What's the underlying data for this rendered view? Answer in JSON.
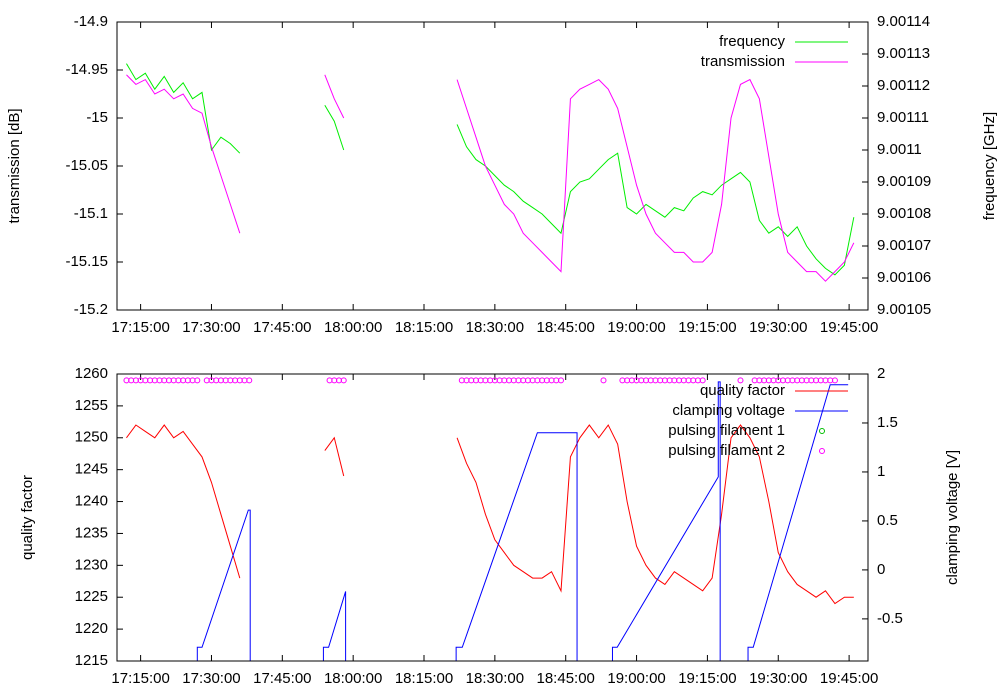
{
  "chart_data": [
    {
      "type": "line",
      "x": [
        1032,
        1034,
        1036,
        1038,
        1040,
        1042,
        1044,
        1046,
        1048,
        1050,
        1052,
        1054,
        1056,
        1058,
        1060,
        1062,
        1064,
        1066,
        1068,
        1070,
        1072,
        1074,
        1076,
        1078,
        1080,
        1082,
        1084,
        1086,
        1088,
        1090,
        1092,
        1094,
        1096,
        1098,
        1100,
        1102,
        1104,
        1106,
        1108,
        1110,
        1112,
        1114,
        1116,
        1118,
        1120,
        1122,
        1124,
        1126,
        1128,
        1130,
        1132,
        1134,
        1136,
        1138,
        1140,
        1142,
        1144,
        1146,
        1148,
        1150,
        1152,
        1154,
        1156,
        1158,
        1160,
        1162,
        1164,
        1166,
        1168,
        1170,
        1172,
        1174,
        1176,
        1178,
        1180,
        1182,
        1184,
        1186
      ],
      "xlim": [
        1030,
        1189
      ],
      "xticks": [
        {
          "value": 1035,
          "label": "17:15:00"
        },
        {
          "value": 1050,
          "label": "17:30:00"
        },
        {
          "value": 1065,
          "label": "17:45:00"
        },
        {
          "value": 1080,
          "label": "18:00:00"
        },
        {
          "value": 1095,
          "label": "18:15:00"
        },
        {
          "value": 1110,
          "label": "18:30:00"
        },
        {
          "value": 1125,
          "label": "18:45:00"
        },
        {
          "value": 1140,
          "label": "19:00:00"
        },
        {
          "value": 1155,
          "label": "19:15:00"
        },
        {
          "value": 1170,
          "label": "19:30:00"
        },
        {
          "value": 1185,
          "label": "19:45:00"
        }
      ],
      "ylim": [
        -15.2,
        -14.9
      ],
      "yticks": [
        -15.2,
        -15.15,
        -15.1,
        -15.05,
        -15,
        -14.95,
        -14.9
      ],
      "y2lim": [
        9.00105,
        9.00114
      ],
      "y2ticks": [
        9.00105,
        9.00106,
        9.00107,
        9.00108,
        9.00109,
        9.0011,
        9.00111,
        9.00112,
        9.00113,
        9.00114
      ],
      "ylabel": "transmission [dB]",
      "y2label": "frequency [GHz]",
      "legend": "upper right",
      "series": [
        {
          "name": "frequency",
          "color": "#00ee00",
          "axis": "y2",
          "values": [
            9.001127,
            9.001122,
            9.001124,
            9.001119,
            9.001123,
            9.001118,
            9.001121,
            9.001116,
            9.001118,
            9.0011,
            9.001104,
            9.001102,
            9.001099,
            null,
            null,
            null,
            null,
            null,
            null,
            null,
            null,
            9.001114,
            9.001109,
            9.0011,
            null,
            null,
            null,
            null,
            null,
            null,
            null,
            null,
            null,
            null,
            null,
            9.001108,
            9.001101,
            9.001097,
            9.001095,
            9.001092,
            9.001089,
            9.001087,
            9.001084,
            9.001082,
            9.00108,
            9.001077,
            9.001074,
            9.001087,
            9.00109,
            9.001091,
            9.001094,
            9.001097,
            9.001099,
            9.001082,
            9.00108,
            9.001083,
            9.001081,
            9.001079,
            9.001082,
            9.001081,
            9.001085,
            9.001087,
            9.001086,
            9.001089,
            9.001091,
            9.001093,
            9.00109,
            9.001078,
            9.001074,
            9.001076,
            9.001073,
            9.001076,
            9.00107,
            9.001066,
            9.001063,
            9.001061,
            9.001064,
            9.001079
          ]
        },
        {
          "name": "transmission",
          "color": "#ff00ff",
          "values": [
            -14.955,
            -14.965,
            -14.96,
            -14.975,
            -14.97,
            -14.98,
            -14.975,
            -14.99,
            -14.995,
            -15.03,
            -15.06,
            -15.09,
            -15.12,
            null,
            null,
            null,
            null,
            null,
            null,
            null,
            null,
            -14.955,
            -14.98,
            -15,
            null,
            null,
            null,
            null,
            null,
            null,
            null,
            null,
            null,
            null,
            null,
            -14.96,
            -14.99,
            -15.02,
            -15.05,
            -15.07,
            -15.09,
            -15.1,
            -15.12,
            -15.13,
            -15.14,
            -15.15,
            -15.16,
            -14.98,
            -14.97,
            -14.965,
            -14.96,
            -14.97,
            -14.99,
            -15.03,
            -15.07,
            -15.1,
            -15.12,
            -15.13,
            -15.14,
            -15.14,
            -15.15,
            -15.15,
            -15.14,
            -15.09,
            -15,
            -14.965,
            -14.96,
            -14.98,
            -15.04,
            -15.1,
            -15.14,
            -15.15,
            -15.16,
            -15.16,
            -15.17,
            -15.16,
            -15.15,
            -15.13
          ]
        }
      ]
    },
    {
      "type": "line",
      "xlim": [
        1030,
        1189
      ],
      "xticks": [
        {
          "value": 1035,
          "label": "17:15:00"
        },
        {
          "value": 1050,
          "label": "17:30:00"
        },
        {
          "value": 1065,
          "label": "17:45:00"
        },
        {
          "value": 1080,
          "label": "18:00:00"
        },
        {
          "value": 1095,
          "label": "18:15:00"
        },
        {
          "value": 1110,
          "label": "18:30:00"
        },
        {
          "value": 1125,
          "label": "18:45:00"
        },
        {
          "value": 1140,
          "label": "19:00:00"
        },
        {
          "value": 1155,
          "label": "19:15:00"
        },
        {
          "value": 1170,
          "label": "19:30:00"
        },
        {
          "value": 1185,
          "label": "19:45:00"
        }
      ],
      "ylim": [
        1215,
        1260
      ],
      "yticks": [
        1215,
        1220,
        1225,
        1230,
        1235,
        1240,
        1245,
        1250,
        1255,
        1260
      ],
      "y2lim": [
        -0.93,
        2
      ],
      "y2ticks": [
        -0.5,
        0,
        0.5,
        1,
        1.5,
        2
      ],
      "ylabel": "quality factor",
      "y2label": "clamping voltage [V]",
      "legend": "upper right",
      "series": [
        {
          "name": "quality factor",
          "color": "#ff0000",
          "x": [
            1032,
            1034,
            1036,
            1038,
            1040,
            1042,
            1044,
            1046,
            1048,
            1050,
            1052,
            1054,
            1056,
            1058,
            1060,
            1062,
            1064,
            1066,
            1068,
            1070,
            1072,
            1074,
            1076,
            1078,
            1080,
            1082,
            1084,
            1086,
            1088,
            1090,
            1092,
            1094,
            1096,
            1098,
            1100,
            1102,
            1104,
            1106,
            1108,
            1110,
            1112,
            1114,
            1116,
            1118,
            1120,
            1122,
            1124,
            1126,
            1128,
            1130,
            1132,
            1134,
            1136,
            1138,
            1140,
            1142,
            1144,
            1146,
            1148,
            1150,
            1152,
            1154,
            1156,
            1158,
            1160,
            1162,
            1164,
            1166,
            1168,
            1170,
            1172,
            1174,
            1176,
            1178,
            1180,
            1182,
            1184,
            1186
          ],
          "values": [
            1250,
            1252,
            1251,
            1250,
            1252,
            1250,
            1251,
            1249,
            1247,
            1243,
            1238,
            1233,
            1228,
            null,
            null,
            null,
            null,
            null,
            null,
            null,
            null,
            1248,
            1250,
            1244,
            null,
            null,
            null,
            null,
            null,
            null,
            null,
            null,
            null,
            null,
            null,
            1250,
            1246,
            1243,
            1238,
            1234,
            1232,
            1230,
            1229,
            1228,
            1228,
            1229,
            1226,
            1247,
            1250,
            1252,
            1250,
            1252,
            1249,
            1240,
            1233,
            1230,
            1228,
            1227,
            1229,
            1228,
            1227,
            1226,
            1228,
            1238,
            1250,
            1252,
            1250,
            1247,
            1240,
            1232,
            1229,
            1227,
            1226,
            1225,
            1226,
            1224,
            1225,
            1225
          ]
        },
        {
          "name": "clamping voltage",
          "color": "#0000ff",
          "axis": "y2",
          "x": [
            1047,
            1047,
            1048,
            1057.8,
            1058.2,
            1058.2,
            1066,
            1073.7,
            1073.7,
            1074.8,
            1078.4,
            1078.4,
            1090,
            1101.8,
            1101.8,
            1103.1,
            1119,
            1127.4,
            1127.4,
            1131,
            1134.9,
            1134.9,
            1135.9,
            1157.3,
            1157.3,
            1157.7,
            1157.7,
            1160,
            1163.6,
            1163.6,
            1164.7,
            1181,
            1184.8
          ],
          "values": [
            -1,
            -0.79,
            -0.79,
            0.61,
            0.61,
            -1,
            null,
            -1,
            -0.79,
            -0.79,
            -0.22,
            -1,
            null,
            -1,
            -0.79,
            -0.79,
            1.4,
            1.4,
            -1,
            null,
            -1,
            -0.79,
            -0.79,
            0.95,
            1.92,
            1.92,
            -1,
            null,
            -1,
            -0.79,
            -0.79,
            1.89,
            1.89
          ]
        },
        {
          "name": "pulsing filament 1",
          "color": "#00c000",
          "marker": "circle",
          "x": [],
          "values": []
        },
        {
          "name": "pulsing filament 2",
          "color": "#ff00ff",
          "marker": "circle",
          "x": [
            1032,
            1033,
            1034,
            1035,
            1036,
            1037,
            1038,
            1039,
            1040,
            1041,
            1042,
            1043,
            1044,
            1045,
            1046,
            1047,
            1049,
            1050,
            1051,
            1052,
            1053,
            1054,
            1055,
            1056,
            1057,
            1058,
            1075,
            1076,
            1077,
            1078,
            1103,
            1104,
            1105,
            1106,
            1107,
            1108,
            1109,
            1110,
            1111,
            1112,
            1113,
            1114,
            1115,
            1116,
            1117,
            1118,
            1119,
            1120,
            1121,
            1122,
            1123,
            1124,
            1133,
            1137,
            1138,
            1139,
            1140,
            1141,
            1142,
            1143,
            1144,
            1145,
            1146,
            1147,
            1148,
            1149,
            1150,
            1151,
            1152,
            1153,
            1154,
            1162,
            1165,
            1166,
            1167,
            1168,
            1169,
            1170,
            1171,
            1172,
            1173,
            1174,
            1175,
            1176,
            1177,
            1178,
            1179,
            1180,
            1181,
            1182
          ],
          "values": [
            1259,
            1259,
            1259,
            1259,
            1259,
            1259,
            1259,
            1259,
            1259,
            1259,
            1259,
            1259,
            1259,
            1259,
            1259,
            1259,
            1259,
            1259,
            1259,
            1259,
            1259,
            1259,
            1259,
            1259,
            1259,
            1259,
            1259,
            1259,
            1259,
            1259,
            1259,
            1259,
            1259,
            1259,
            1259,
            1259,
            1259,
            1259,
            1259,
            1259,
            1259,
            1259,
            1259,
            1259,
            1259,
            1259,
            1259,
            1259,
            1259,
            1259,
            1259,
            1259,
            1259,
            1259,
            1259,
            1259,
            1259,
            1259,
            1259,
            1259,
            1259,
            1259,
            1259,
            1259,
            1259,
            1259,
            1259,
            1259,
            1259,
            1259,
            1259,
            1259,
            1259,
            1259,
            1259,
            1259,
            1259,
            1259,
            1259,
            1259,
            1259,
            1259,
            1259,
            1259,
            1259,
            1259,
            1259,
            1259,
            1259,
            1259
          ]
        }
      ]
    }
  ]
}
